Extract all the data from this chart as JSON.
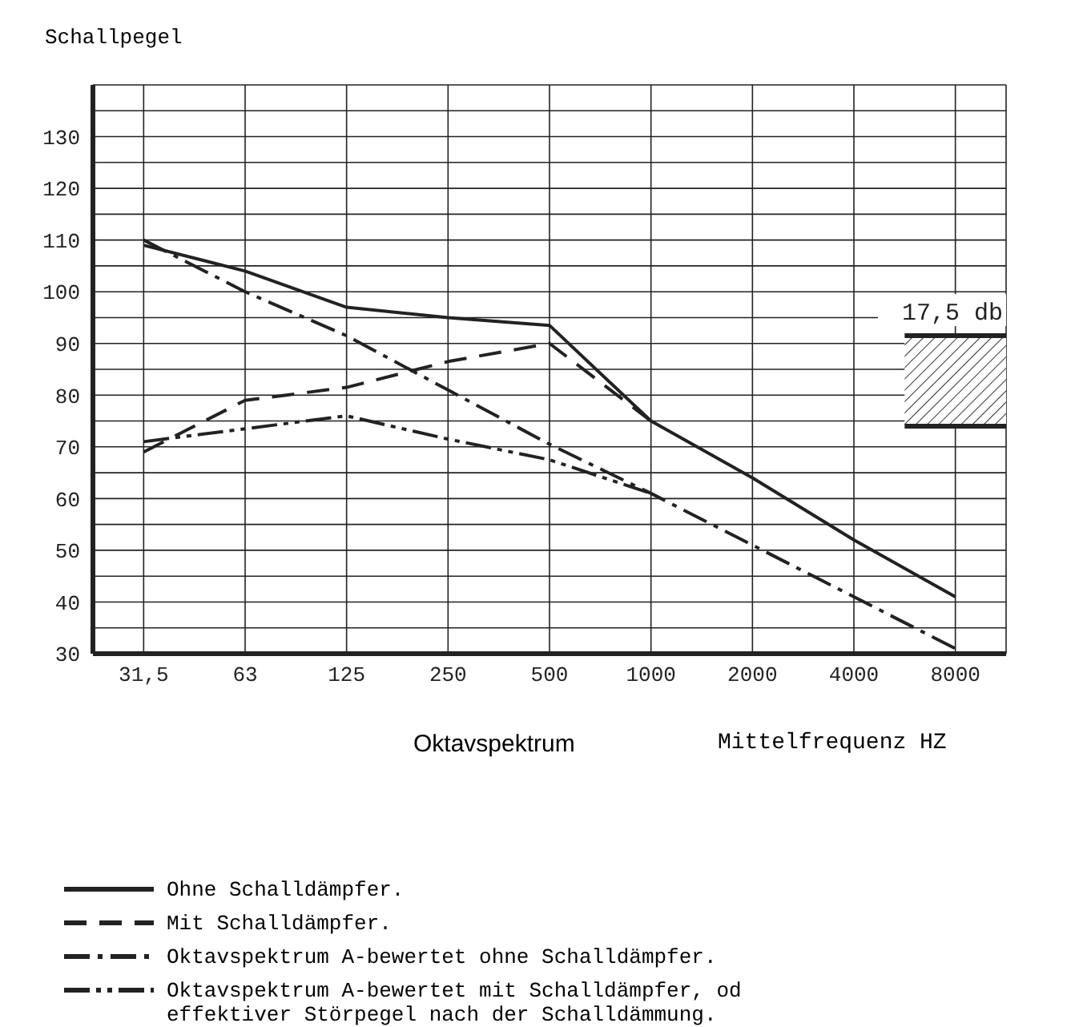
{
  "chart_data": {
    "type": "line",
    "ylabel": "Schallpegel",
    "xlabel": "Oktavspektrum",
    "annotations": [
      "Mittelfrequenz HZ"
    ],
    "categories": [
      "31,5",
      "63",
      "125",
      "250",
      "500",
      "1000",
      "2000",
      "4000",
      "8000"
    ],
    "series": [
      {
        "name": "Ohne Schalldämpfer.",
        "color": "#222222",
        "line_style": "solid",
        "values": [
          109,
          104,
          97,
          95,
          93.5,
          75,
          64,
          52,
          41
        ]
      },
      {
        "name": "Mit Schalldämpfer.",
        "color": "#222222",
        "line_style": "dashed",
        "values": [
          69,
          79,
          81.5,
          86.5,
          90,
          75,
          null,
          null,
          null
        ]
      },
      {
        "name": "Oktavspektrum A-bewertet ohne Schalldämpfer.",
        "color": "#222222",
        "line_style": "dashdot",
        "values": [
          110,
          100,
          91.5,
          81,
          70.5,
          61,
          51,
          41,
          31
        ]
      },
      {
        "name": "Oktavspektrum A-bewertet mit Schalldämpfer, od effektiver Störpegel nach der Schalldämmung.",
        "color": "#222222",
        "line_style": "dashdotdot",
        "values": [
          71,
          73.5,
          76,
          71.5,
          67.5,
          61,
          null,
          null,
          null
        ]
      }
    ],
    "bands": [
      {
        "axis": "y",
        "from": 74,
        "to": 91.5,
        "label": "17,5 db"
      }
    ],
    "ref_lines": [
      {
        "axis": "y",
        "value": 74
      },
      {
        "axis": "y",
        "value": 91.5
      }
    ],
    "ylim": [
      30,
      140
    ],
    "yticks": [
      30,
      {
        "value": 35,
        "label": null
      },
      40,
      {
        "value": 45,
        "label": null
      },
      50,
      {
        "value": 55,
        "label": null
      },
      60,
      {
        "value": 65,
        "label": null
      },
      70,
      {
        "value": 75,
        "label": null
      },
      80,
      {
        "value": 85,
        "label": null
      },
      90,
      {
        "value": 95,
        "label": null
      },
      100,
      {
        "value": 105,
        "label": null
      },
      110,
      {
        "value": 115,
        "label": null
      },
      120,
      {
        "value": 125,
        "label": null
      },
      130,
      {
        "value": 135,
        "label": null
      }
    ],
    "grid": true,
    "legend": "bottom",
    "marker": "none"
  }
}
